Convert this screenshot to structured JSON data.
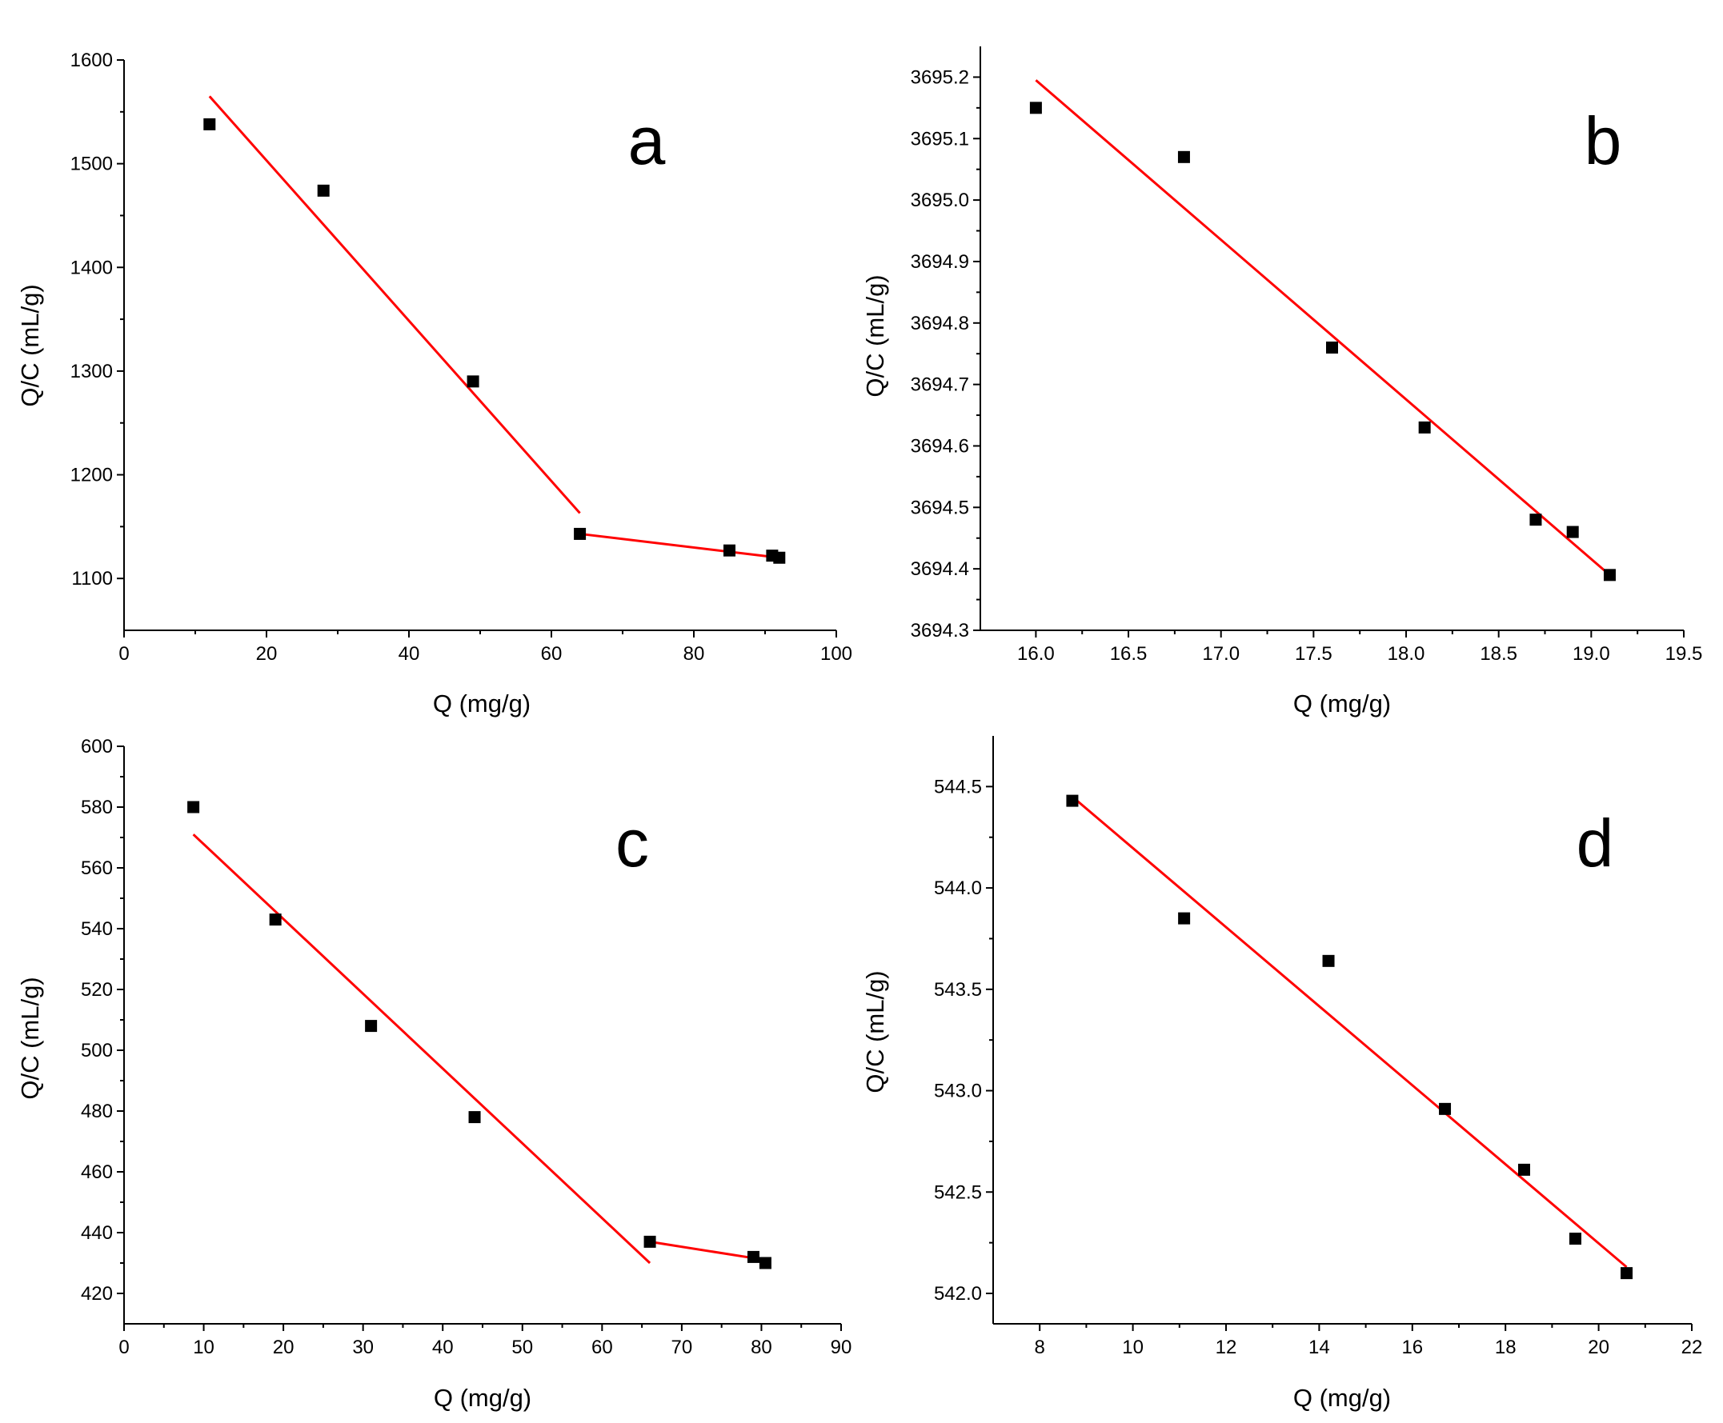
{
  "figure": {
    "panels": [
      "a",
      "b",
      "c",
      "d"
    ]
  },
  "chart_data": [
    {
      "panel": "a",
      "type": "scatter",
      "title": "",
      "xlabel": "Q (mg/g)",
      "ylabel": "Q/C (mL/g)",
      "xlim": [
        0,
        100
      ],
      "ylim": [
        1050,
        1600
      ],
      "xticks": [
        0,
        20,
        40,
        60,
        80,
        100
      ],
      "yticks": [
        1100,
        1200,
        1300,
        1400,
        1500,
        1600
      ],
      "tick_decimals": {
        "x": 0,
        "y": 0
      },
      "points": [
        {
          "x": 12,
          "y": 1538
        },
        {
          "x": 28,
          "y": 1474
        },
        {
          "x": 49,
          "y": 1290
        },
        {
          "x": 64,
          "y": 1143
        },
        {
          "x": 85,
          "y": 1127
        },
        {
          "x": 91,
          "y": 1122
        },
        {
          "x": 92,
          "y": 1120
        }
      ],
      "fit_lines": [
        {
          "x": [
            12,
            64
          ],
          "y": [
            1565,
            1163
          ]
        },
        {
          "x": [
            64,
            92
          ],
          "y": [
            1143,
            1120
          ]
        }
      ],
      "point_color": "#000000",
      "line_color": "#ff0000",
      "grid": false
    },
    {
      "panel": "b",
      "type": "scatter",
      "title": "",
      "xlabel": "Q (mg/g)",
      "ylabel": "Q/C (mL/g)",
      "xlim": [
        15.7,
        19.5
      ],
      "ylim": [
        3694.3,
        3695.25
      ],
      "xticks": [
        16.0,
        16.5,
        17.0,
        17.5,
        18.0,
        18.5,
        19.0,
        19.5
      ],
      "yticks": [
        3694.3,
        3694.4,
        3694.5,
        3694.6,
        3694.7,
        3694.8,
        3694.9,
        3695.0,
        3695.1,
        3695.2
      ],
      "tick_decimals": {
        "x": 1,
        "y": 1
      },
      "points": [
        {
          "x": 16.0,
          "y": 3695.15
        },
        {
          "x": 16.8,
          "y": 3695.07
        },
        {
          "x": 17.6,
          "y": 3694.76
        },
        {
          "x": 18.1,
          "y": 3694.63
        },
        {
          "x": 18.7,
          "y": 3694.48
        },
        {
          "x": 18.9,
          "y": 3694.46
        },
        {
          "x": 19.1,
          "y": 3694.39
        }
      ],
      "fit_lines": [
        {
          "x": [
            16.0,
            19.1
          ],
          "y": [
            3695.195,
            3694.39
          ]
        }
      ],
      "point_color": "#000000",
      "line_color": "#ff0000",
      "grid": false
    },
    {
      "panel": "c",
      "type": "scatter",
      "title": "",
      "xlabel": "Q (mg/g)",
      "ylabel": "Q/C (mL/g)",
      "xlim": [
        0,
        90
      ],
      "ylim": [
        410,
        600
      ],
      "xticks": [
        0,
        10,
        20,
        30,
        40,
        50,
        60,
        70,
        80,
        90
      ],
      "yticks": [
        420,
        440,
        460,
        480,
        500,
        520,
        540,
        560,
        580,
        600
      ],
      "tick_decimals": {
        "x": 0,
        "y": 0
      },
      "points": [
        {
          "x": 8.7,
          "y": 580
        },
        {
          "x": 19,
          "y": 543
        },
        {
          "x": 31,
          "y": 508
        },
        {
          "x": 44,
          "y": 478
        },
        {
          "x": 66,
          "y": 437
        },
        {
          "x": 79,
          "y": 432
        },
        {
          "x": 80.5,
          "y": 430
        }
      ],
      "fit_lines": [
        {
          "x": [
            8.7,
            66
          ],
          "y": [
            571,
            430
          ]
        },
        {
          "x": [
            66,
            80.5
          ],
          "y": [
            437,
            431
          ]
        }
      ],
      "point_color": "#000000",
      "line_color": "#ff0000",
      "grid": false
    },
    {
      "panel": "d",
      "type": "scatter",
      "title": "",
      "xlabel": "Q (mg/g)",
      "ylabel": "Q/C (mL/g)",
      "xlim": [
        7,
        22
      ],
      "ylim": [
        541.85,
        544.75
      ],
      "xticks": [
        8,
        10,
        12,
        14,
        16,
        18,
        20,
        22
      ],
      "yticks": [
        542.0,
        542.5,
        543.0,
        543.5,
        544.0,
        544.5
      ],
      "tick_decimals": {
        "x": 0,
        "y": 1
      },
      "points": [
        {
          "x": 8.7,
          "y": 544.43
        },
        {
          "x": 11.1,
          "y": 543.85
        },
        {
          "x": 14.2,
          "y": 543.64
        },
        {
          "x": 16.7,
          "y": 542.91
        },
        {
          "x": 18.4,
          "y": 542.61
        },
        {
          "x": 19.5,
          "y": 542.27
        },
        {
          "x": 20.6,
          "y": 542.1
        }
      ],
      "fit_lines": [
        {
          "x": [
            8.7,
            20.6
          ],
          "y": [
            544.45,
            542.13
          ]
        }
      ],
      "point_color": "#000000",
      "line_color": "#ff0000",
      "grid": false
    }
  ]
}
